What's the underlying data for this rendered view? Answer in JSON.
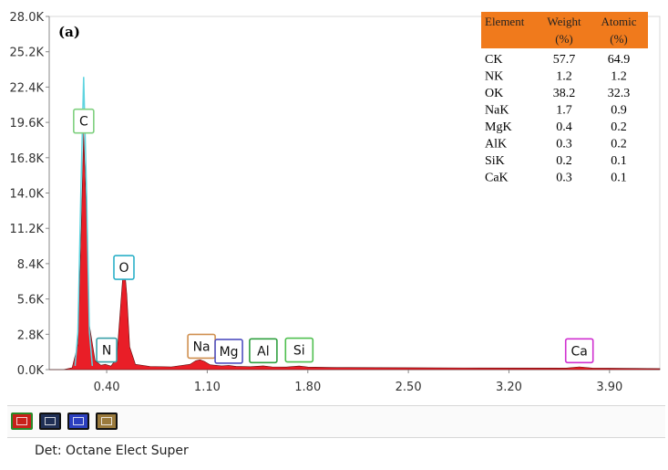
{
  "panel_label": "(a)",
  "detector": "Det: Octane Elect Super",
  "colors": {
    "spectrum_fill": "#e8121b",
    "peak_outline": "#5fd4e0",
    "axis": "#888888",
    "table_header_bg": "#f07a1c"
  },
  "legend_swatches": [
    {
      "name": "red-swatch",
      "color": "#c8201a",
      "border": "#2a8a2a"
    },
    {
      "name": "navy-swatch",
      "color": "#1f2f55",
      "border": "#111111"
    },
    {
      "name": "blue-swatch",
      "color": "#2b3fbf",
      "border": "#111111"
    },
    {
      "name": "brown-swatch",
      "color": "#9a7a3c",
      "border": "#111111"
    }
  ],
  "element_labels": [
    {
      "text": "C",
      "box_color": "#7fd07f",
      "x": 0.24,
      "y": 19700
    },
    {
      "text": "N",
      "box_color": "#3aa0a8",
      "x": 0.4,
      "y": 1550
    },
    {
      "text": "O",
      "box_color": "#2bb0c8",
      "x": 0.52,
      "y": 8100
    },
    {
      "text": "Na",
      "box_color": "#d09050",
      "x": 1.06,
      "y": 1850
    },
    {
      "text": "Mg",
      "box_color": "#5050c0",
      "x": 1.25,
      "y": 1450
    },
    {
      "text": "Al",
      "box_color": "#30a040",
      "x": 1.49,
      "y": 1500
    },
    {
      "text": "Si",
      "box_color": "#50c050",
      "x": 1.74,
      "y": 1550
    },
    {
      "text": "Ca",
      "box_color": "#d030d0",
      "x": 3.69,
      "y": 1500
    }
  ],
  "table": {
    "headers": [
      {
        "line1": "Element",
        "line2": ""
      },
      {
        "line1": "Weight",
        "line2": "(%)"
      },
      {
        "line1": "Atomic",
        "line2": "(%)"
      }
    ],
    "rows": [
      [
        "CK",
        "57.7",
        "64.9"
      ],
      [
        "NK",
        "1.2",
        "1.2"
      ],
      [
        "OK",
        "38.2",
        "32.3"
      ],
      [
        "NaK",
        "1.7",
        "0.9"
      ],
      [
        "MgK",
        "0.4",
        "0.2"
      ],
      [
        "AlK",
        "0.3",
        "0.2"
      ],
      [
        "SiK",
        "0.2",
        "0.1"
      ],
      [
        "CaK",
        "0.3",
        "0.1"
      ]
    ]
  },
  "chart_data": {
    "type": "area",
    "title": "",
    "xlabel": "",
    "ylabel": "",
    "xlim": [
      0.0,
      4.25
    ],
    "ylim": [
      0,
      28000
    ],
    "x_ticks": [
      "0.40",
      "1.10",
      "1.80",
      "2.50",
      "3.20",
      "3.90"
    ],
    "x_tick_values": [
      0.4,
      1.1,
      1.8,
      2.5,
      3.2,
      3.9
    ],
    "y_ticks": [
      "0.0K",
      "2.8K",
      "5.6K",
      "8.4K",
      "11.2K",
      "14.0K",
      "16.8K",
      "19.6K",
      "22.4K",
      "25.2K",
      "28.0K"
    ],
    "y_tick_values": [
      0,
      2800,
      5600,
      8400,
      11200,
      14000,
      16800,
      19600,
      22400,
      25200,
      28000
    ],
    "grid": false,
    "legend": "none",
    "series": [
      {
        "name": "",
        "x": [
          0.0,
          0.1,
          0.16,
          0.2,
          0.22,
          0.24,
          0.26,
          0.28,
          0.32,
          0.36,
          0.39,
          0.43,
          0.47,
          0.5,
          0.52,
          0.54,
          0.56,
          0.6,
          0.7,
          0.85,
          0.98,
          1.02,
          1.05,
          1.08,
          1.12,
          1.2,
          1.25,
          1.3,
          1.4,
          1.49,
          1.55,
          1.65,
          1.74,
          1.8,
          2.0,
          2.5,
          3.0,
          3.6,
          3.69,
          3.78,
          4.0,
          4.25
        ],
        "y": [
          0,
          0,
          150,
          2000,
          10000,
          18800,
          12000,
          3500,
          700,
          350,
          420,
          280,
          900,
          5500,
          8600,
          6000,
          1800,
          420,
          250,
          220,
          420,
          700,
          780,
          650,
          380,
          300,
          330,
          260,
          230,
          300,
          220,
          200,
          280,
          200,
          170,
          150,
          130,
          120,
          220,
          120,
          100,
          80
        ]
      },
      {
        "name": "",
        "x": [
          0.18,
          0.2,
          0.22,
          0.24,
          0.26,
          0.28,
          0.3
        ],
        "y": [
          300,
          3000,
          14000,
          23200,
          14000,
          3000,
          300
        ]
      }
    ]
  }
}
